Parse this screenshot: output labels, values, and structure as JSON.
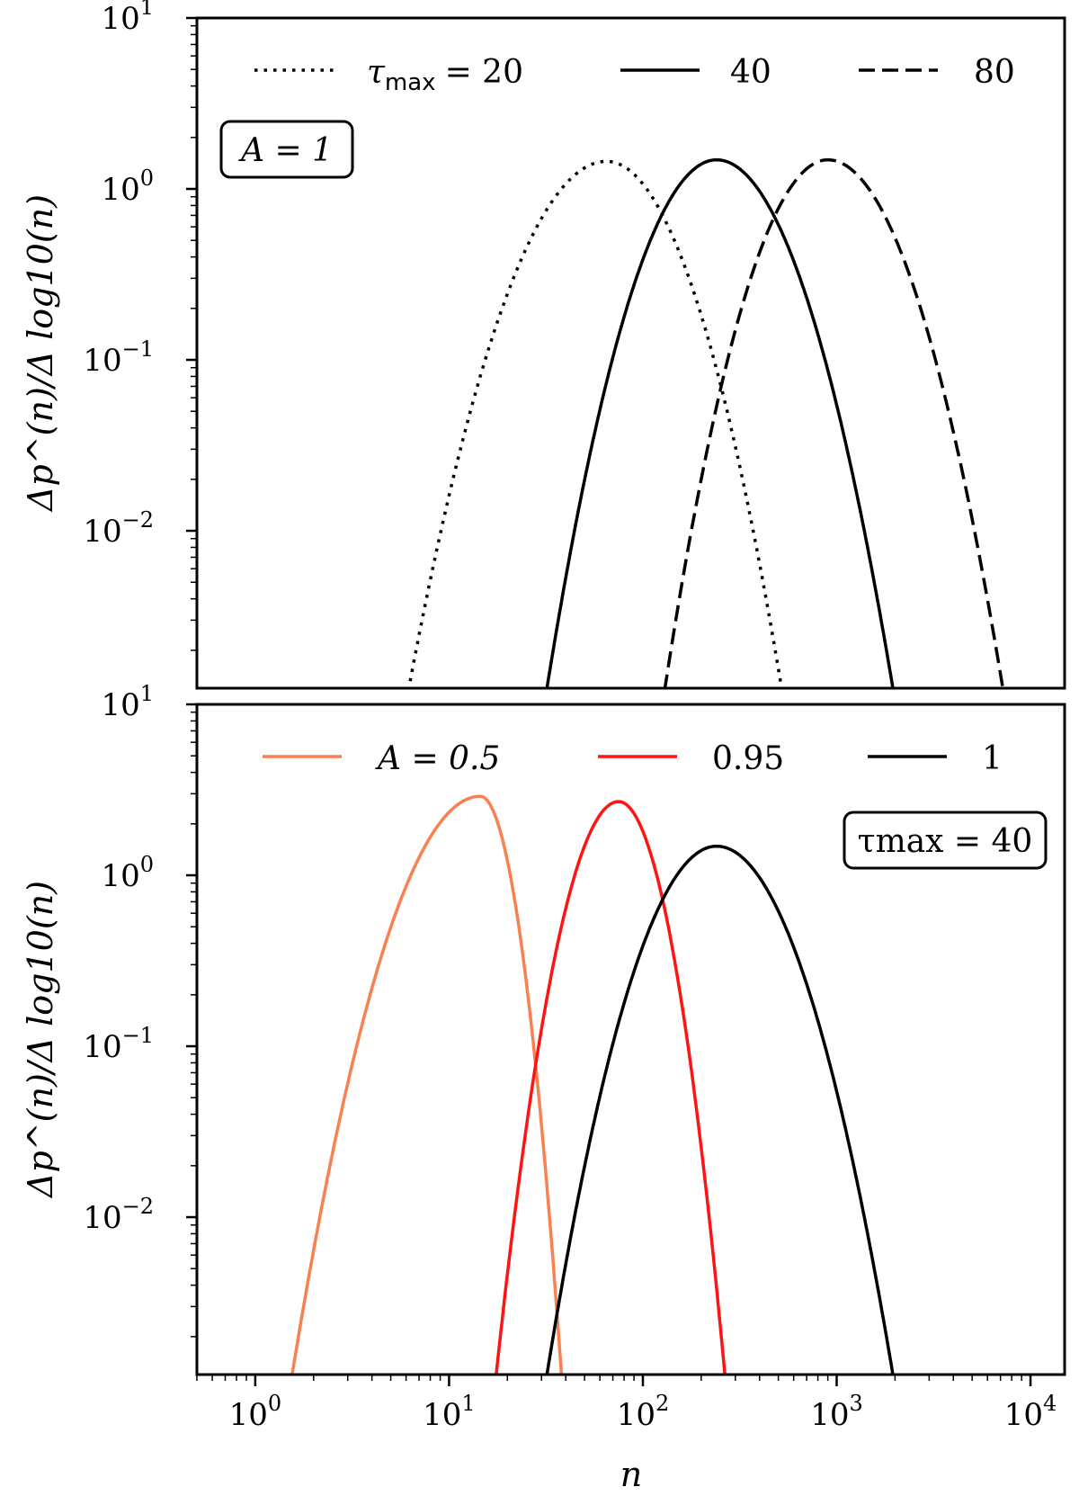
{
  "chart_data": [
    {
      "type": "line",
      "title": "",
      "xlabel": "",
      "ylabel": "Δp^(n)/Δ log10(n)",
      "x_scale": "log",
      "y_scale": "log",
      "xlim": [
        0.5,
        15000
      ],
      "ylim": [
        0.0012,
        10
      ],
      "grid": false,
      "legend_placement": "top",
      "annotation": "A = 1",
      "annotation_placement": "upper-left",
      "y_ticks": [
        {
          "value": 0.01,
          "base": "10",
          "exp": "−2"
        },
        {
          "value": 0.1,
          "base": "10",
          "exp": "−1"
        },
        {
          "value": 1,
          "base": "10",
          "exp": "0"
        },
        {
          "value": 10,
          "base": "10",
          "exp": "1"
        }
      ],
      "legend_prefix": "τ",
      "legend_prefix_sub": "max",
      "series": [
        {
          "name": "= 20",
          "style": "dotted",
          "color": "#000000",
          "peak_n": 65,
          "peak_value": 1.45,
          "x_range": [
            6.2,
            520
          ]
        },
        {
          "name": "40",
          "style": "solid",
          "color": "#000000",
          "peak_n": 240,
          "peak_value": 1.48,
          "x_range": [
            32,
            1950
          ]
        },
        {
          "name": "80",
          "style": "dashed",
          "color": "#000000",
          "peak_n": 900,
          "peak_value": 1.48,
          "x_range": [
            130,
            7200
          ]
        }
      ]
    },
    {
      "type": "line",
      "title": "",
      "xlabel": "n",
      "ylabel": "Δp^(n)/Δ log10(n)",
      "x_scale": "log",
      "y_scale": "log",
      "xlim": [
        0.5,
        15000
      ],
      "ylim": [
        0.0012,
        10
      ],
      "grid": false,
      "legend_placement": "top",
      "annotation": "τmax = 40",
      "annotation_placement": "upper-right",
      "x_ticks": [
        {
          "value": 1,
          "base": "10",
          "exp": "0"
        },
        {
          "value": 10,
          "base": "10",
          "exp": "1"
        },
        {
          "value": 100,
          "base": "10",
          "exp": "2"
        },
        {
          "value": 1000,
          "base": "10",
          "exp": "3"
        },
        {
          "value": 10000,
          "base": "10",
          "exp": "4"
        }
      ],
      "y_ticks": [
        {
          "value": 0.01,
          "base": "10",
          "exp": "−2"
        },
        {
          "value": 0.1,
          "base": "10",
          "exp": "−1"
        },
        {
          "value": 1,
          "base": "10",
          "exp": "0"
        },
        {
          "value": 10,
          "base": "10",
          "exp": "1"
        }
      ],
      "series": [
        {
          "name": "A = 0.5",
          "style": "solid",
          "color": "#f98050",
          "peak_n": 14.5,
          "peak_value": 2.9,
          "x_range": [
            1.55,
            38
          ]
        },
        {
          "name": "0.95",
          "style": "solid",
          "color": "#ff1414",
          "peak_n": 75,
          "peak_value": 2.7,
          "x_range": [
            17.5,
            265
          ]
        },
        {
          "name": "1",
          "style": "solid",
          "color": "#000000",
          "peak_n": 240,
          "peak_value": 1.48,
          "x_range": [
            32,
            1950
          ]
        }
      ]
    }
  ]
}
